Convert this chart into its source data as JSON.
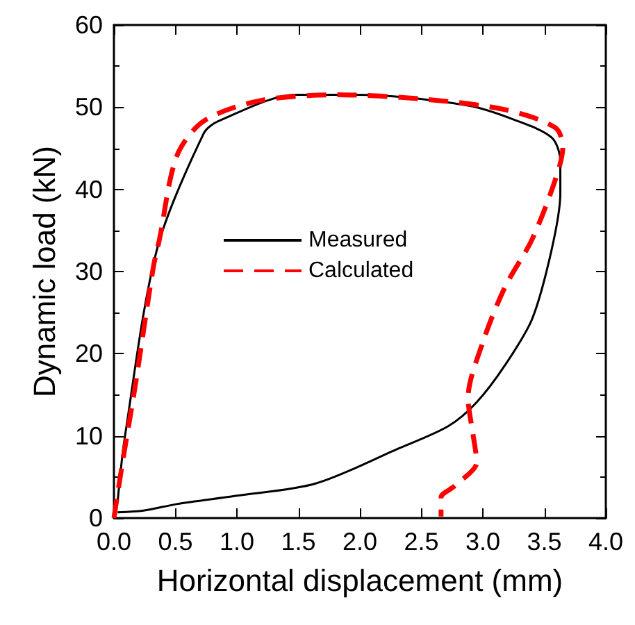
{
  "chart_data": {
    "type": "line",
    "xlabel": "Horizontal displacement (mm)",
    "ylabel": "Dynamic load (kN)",
    "xlim": [
      0,
      4
    ],
    "xticks": [
      {
        "value": 0,
        "label": "0.0"
      },
      {
        "value": 0.5,
        "label": "0.5"
      },
      {
        "value": 1,
        "label": "1.0"
      },
      {
        "value": 1.5,
        "label": "1.5"
      },
      {
        "value": 2,
        "label": "2.0"
      },
      {
        "value": 2.5,
        "label": "2.5"
      },
      {
        "value": 3,
        "label": "3.0"
      },
      {
        "value": 3.5,
        "label": "3.5"
      },
      {
        "value": 4,
        "label": "4.0"
      }
    ],
    "ylim": [
      0,
      60
    ],
    "yticks": [
      0,
      10,
      20,
      30,
      40,
      50,
      60
    ],
    "grid": false,
    "legend": "center",
    "marker": "none",
    "series": [
      {
        "name": "Measured",
        "color": "#000000",
        "line_style": "solid",
        "x": [
          0.03,
          0.09,
          0.35,
          0.73,
          0.85,
          1.48,
          1.98,
          2.88,
          3.25,
          3.56,
          3.63,
          3.63,
          3.56,
          3.4,
          3.18,
          2.95,
          2.72,
          2.32,
          1.64,
          0.99,
          0.51,
          0.24,
          0.03
        ],
        "values": [
          2,
          10,
          32.7,
          46.8,
          48.3,
          51.5,
          51.5,
          50.2,
          48.5,
          46.3,
          43.4,
          39.5,
          32.7,
          24.2,
          18.6,
          14.1,
          11.2,
          8.5,
          4.2,
          2.7,
          1.7,
          0.9,
          0.7
        ]
      },
      {
        "name": "Calculated",
        "color": "#ff0000",
        "line_style": "dashed",
        "x": [
          0,
          0.07,
          0.17,
          0.32,
          0.37,
          0.51,
          0.73,
          1.19,
          1.82,
          2.5,
          3.18,
          3.59,
          3.65,
          3.59,
          3.4,
          3.18,
          3.0,
          2.88,
          2.92,
          2.95,
          2.77,
          2.66,
          2.66
        ],
        "values": [
          0,
          6.8,
          15.8,
          30.5,
          33.9,
          44,
          48.3,
          50.8,
          51.5,
          51,
          49.7,
          47.5,
          45.1,
          41.2,
          33.9,
          28.1,
          21.4,
          14.6,
          10.2,
          6.8,
          3.9,
          2.5,
          0.2
        ]
      }
    ]
  }
}
